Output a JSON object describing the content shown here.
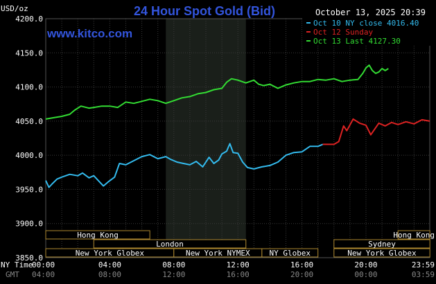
{
  "header": {
    "title": "24 Hour Spot Gold (Bid)",
    "date": "October 13, 2025 20:39",
    "brand": "www.kitco.com",
    "unit": "USD/oz"
  },
  "legend": [
    {
      "label": "Oct 10 NY close 4016.40",
      "color": "#33bbee"
    },
    {
      "label": "Oct 12 Sunday",
      "color": "#dd2222"
    },
    {
      "label": "Oct 13 Last 4127.30",
      "color": "#33dd33"
    }
  ],
  "row_labels": {
    "ny_time": "NY Time",
    "gmt": "GMT"
  },
  "sessions": [
    {
      "label": "Hong Kong",
      "start": 0,
      "end": 6.5,
      "row": 0
    },
    {
      "label": "Hong Kong",
      "start": 22.0,
      "end": 23.99,
      "row": 0
    },
    {
      "label": "London",
      "start": 3.0,
      "end": 12.5,
      "row": 1
    },
    {
      "label": "Sydney",
      "start": 18.0,
      "end": 23.99,
      "row": 1
    },
    {
      "label": "New York Globex",
      "start": 0,
      "end": 8.0,
      "row": 2
    },
    {
      "label": "New York NYMEX",
      "start": 8.0,
      "end": 13.5,
      "row": 2
    },
    {
      "label": "NY Globex",
      "start": 13.5,
      "end": 17.0,
      "row": 2
    },
    {
      "label": "New York Globex",
      "start": 18.0,
      "end": 23.99,
      "row": 2
    }
  ],
  "chart_data": {
    "type": "line",
    "title": "24 Hour Spot Gold (Bid)",
    "ylabel": "USD/oz",
    "ylim": [
      3850,
      4200
    ],
    "xlim": [
      0,
      23.983
    ],
    "yticks": [
      3850,
      3900,
      3950,
      4000,
      4050,
      4100,
      4150,
      4200
    ],
    "yticklabels": [
      "3850.0",
      "3900.0",
      "3950.0",
      "4000.0",
      "4050.0",
      "4100.0",
      "4150.0",
      "4200.0"
    ],
    "xticks": [
      0,
      4,
      8,
      12,
      16,
      20,
      23.983
    ],
    "xticklabels_ny": [
      "00:00",
      "04:00",
      "08:00",
      "12:00",
      "16:00",
      "20:00",
      "23:59"
    ],
    "xticklabels_gmt": [
      "04:00",
      "08:00",
      "12:00",
      "16:00",
      "20:00",
      "00:00",
      "03:59"
    ],
    "shaded_region": [
      7.5,
      12.5
    ],
    "grid": true,
    "legend_position": "top-right",
    "series": [
      {
        "name": "Oct 10 NY close 4016.40",
        "color": "#33bbee",
        "x": [
          0,
          0.2,
          0.4,
          0.7,
          1.0,
          1.5,
          2.0,
          2.3,
          2.7,
          3.0,
          3.4,
          3.6,
          3.9,
          4.3,
          4.6,
          5.0,
          5.5,
          6.0,
          6.5,
          7.0,
          7.5,
          7.8,
          8.2,
          8.6,
          9.0,
          9.4,
          9.8,
          10.2,
          10.5,
          10.8,
          11.0,
          11.3,
          11.5,
          11.7,
          12.0,
          12.3,
          12.6,
          13.0,
          13.5,
          14.0,
          14.5,
          15.0,
          15.5,
          16.0,
          16.5,
          17.0,
          17.3
        ],
        "y": [
          3963,
          3953,
          3958,
          3965,
          3968,
          3972,
          3970,
          3974,
          3967,
          3970,
          3960,
          3955,
          3961,
          3968,
          3988,
          3986,
          3992,
          3998,
          4001,
          3995,
          3998,
          3994,
          3990,
          3988,
          3986,
          3991,
          3983,
          3997,
          3988,
          3993,
          4002,
          4006,
          4017,
          4004,
          4003,
          3990,
          3982,
          3980,
          3983,
          3985,
          3990,
          4000,
          4004,
          4005,
          4013,
          4013,
          4016
        ]
      },
      {
        "name": "Oct 12 Sunday",
        "color": "#dd2222",
        "x": [
          17.3,
          17.5,
          18.0,
          18.3,
          18.6,
          18.8,
          19.2,
          19.6,
          20.0,
          20.3,
          20.8,
          21.2,
          21.6,
          22.0,
          22.5,
          23.0,
          23.5,
          23.983
        ],
        "y": [
          4016,
          4016,
          4016,
          4020,
          4043,
          4036,
          4053,
          4047,
          4044,
          4030,
          4047,
          4043,
          4048,
          4045,
          4049,
          4046,
          4052,
          4050
        ]
      },
      {
        "name": "Oct 13 Last 4127.30",
        "color": "#33dd33",
        "x": [
          0,
          0.5,
          1.0,
          1.5,
          1.8,
          2.2,
          2.7,
          3.0,
          3.5,
          4.0,
          4.5,
          5.0,
          5.5,
          6.0,
          6.5,
          7.0,
          7.5,
          8.0,
          8.5,
          9.0,
          9.5,
          10.0,
          10.5,
          11.0,
          11.3,
          11.6,
          12.0,
          12.5,
          13.0,
          13.3,
          13.6,
          14.0,
          14.5,
          15.0,
          15.5,
          16.0,
          16.5,
          17.0,
          17.5,
          18.0,
          18.5,
          19.0,
          19.5,
          19.8,
          20.0,
          20.2,
          20.4,
          20.6,
          20.8,
          21.0,
          21.2,
          21.4
        ],
        "y": [
          4053,
          4055,
          4057,
          4060,
          4066,
          4072,
          4069,
          4070,
          4072,
          4072,
          4070,
          4078,
          4076,
          4079,
          4082,
          4080,
          4076,
          4080,
          4084,
          4086,
          4090,
          4092,
          4096,
          4098,
          4107,
          4112,
          4110,
          4106,
          4110,
          4104,
          4102,
          4104,
          4098,
          4103,
          4106,
          4108,
          4108,
          4111,
          4110,
          4112,
          4108,
          4110,
          4111,
          4120,
          4128,
          4132,
          4124,
          4120,
          4122,
          4127,
          4124,
          4127
        ]
      }
    ]
  }
}
